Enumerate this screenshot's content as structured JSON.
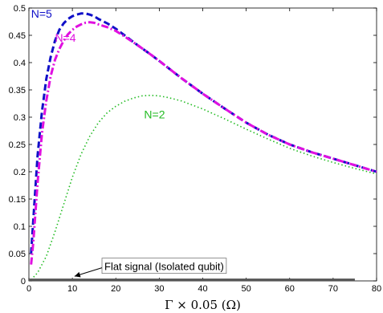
{
  "chart_data": {
    "type": "line",
    "title": "",
    "xlabel": "Γ × 0.05 (Ω)",
    "ylabel": "",
    "xlim": [
      0,
      80
    ],
    "ylim": [
      0,
      0.5
    ],
    "xticks": [
      "0",
      "10",
      "20",
      "30",
      "40",
      "50",
      "60",
      "70",
      "80"
    ],
    "yticks": [
      "0",
      "0.05",
      "0.1",
      "0.15",
      "0.2",
      "0.25",
      "0.3",
      "0.35",
      "0.4",
      "0.45",
      "0.5"
    ],
    "grid": false,
    "series": [
      {
        "name": "N=5",
        "color": "#1010c8",
        "style": "dashed",
        "x": [
          0.5,
          1,
          2,
          3,
          4,
          5,
          6,
          7,
          8,
          9,
          10,
          11,
          12,
          13,
          14,
          15,
          16,
          18,
          20,
          22,
          25,
          28,
          30,
          35,
          40,
          45,
          50,
          55,
          60,
          65,
          70,
          75,
          80
        ],
        "y": [
          0.05,
          0.11,
          0.23,
          0.31,
          0.37,
          0.41,
          0.44,
          0.46,
          0.472,
          0.48,
          0.485,
          0.488,
          0.49,
          0.49,
          0.488,
          0.485,
          0.48,
          0.472,
          0.462,
          0.45,
          0.432,
          0.415,
          0.403,
          0.372,
          0.343,
          0.316,
          0.29,
          0.268,
          0.25,
          0.236,
          0.224,
          0.212,
          0.2
        ]
      },
      {
        "name": "N=4",
        "color": "#e010e0",
        "style": "dashdot",
        "x": [
          0.5,
          1,
          2,
          3,
          4,
          5,
          6,
          7,
          8,
          9,
          10,
          11,
          12,
          13,
          14,
          15,
          16,
          18,
          20,
          22,
          25,
          28,
          30,
          35,
          40,
          45,
          50,
          55,
          60,
          65,
          70,
          75,
          80
        ],
        "y": [
          0.03,
          0.07,
          0.18,
          0.27,
          0.33,
          0.375,
          0.405,
          0.425,
          0.44,
          0.452,
          0.46,
          0.466,
          0.47,
          0.473,
          0.474,
          0.473,
          0.47,
          0.465,
          0.458,
          0.448,
          0.432,
          0.415,
          0.403,
          0.372,
          0.343,
          0.316,
          0.29,
          0.268,
          0.25,
          0.236,
          0.224,
          0.212,
          0.2
        ]
      },
      {
        "name": "N=2",
        "color": "#22bb22",
        "style": "dotted",
        "x": [
          0.5,
          2,
          4,
          6,
          8,
          10,
          12,
          14,
          16,
          18,
          20,
          22,
          24,
          26,
          28,
          30,
          32,
          35,
          40,
          45,
          50,
          55,
          60,
          65,
          70,
          75,
          80
        ],
        "y": [
          0.002,
          0.015,
          0.045,
          0.09,
          0.14,
          0.19,
          0.232,
          0.265,
          0.29,
          0.308,
          0.32,
          0.329,
          0.335,
          0.339,
          0.34,
          0.339,
          0.336,
          0.33,
          0.315,
          0.297,
          0.278,
          0.26,
          0.243,
          0.229,
          0.217,
          0.206,
          0.196
        ]
      },
      {
        "name": "Flat signal (Isolated qubit)",
        "color": "#555555",
        "style": "solid",
        "x": [
          0,
          75
        ],
        "y": [
          0.002,
          0.002
        ]
      }
    ],
    "annotations": [
      {
        "text": "N=5",
        "color": "#1010c8",
        "x": 0.5,
        "y": 0.482
      },
      {
        "text": "N=4",
        "color": "#e010e0",
        "x": 6.0,
        "y": 0.438
      },
      {
        "text": "N=2",
        "color": "#22bb22",
        "x": 26.5,
        "y": 0.298
      }
    ],
    "callout": {
      "text": "Flat signal (Isolated qubit)",
      "box_x": 17.0,
      "box_y": 0.027,
      "arrow_to_x": 10.5,
      "arrow_to_y": 0.004
    }
  }
}
